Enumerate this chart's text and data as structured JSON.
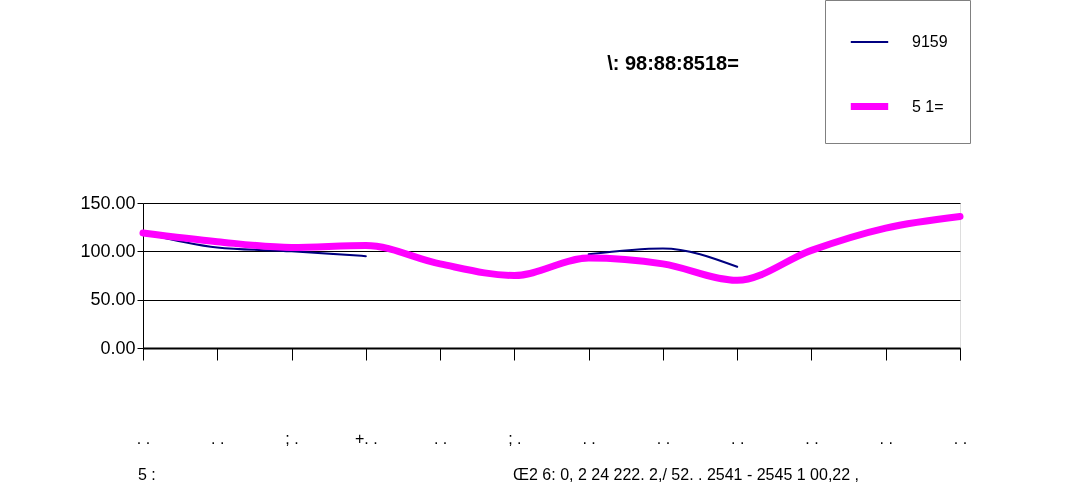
{
  "chart_data": {
    "type": "line",
    "title": "\\: 98:88:8518=",
    "categories": [
      ". .",
      ". .",
      "; .",
      "+. .",
      ". .",
      "; .",
      ". .",
      ". .",
      ". .",
      ". .",
      ". .",
      ". ."
    ],
    "series": [
      {
        "name": "9159",
        "color": "#000080",
        "values": [
          119,
          104,
          100,
          95,
          null,
          null,
          97,
          103,
          84,
          null,
          null,
          null
        ]
      },
      {
        "name": "5 1=",
        "color": "#ff00ff",
        "values": [
          119,
          110,
          104,
          106,
          87,
          75,
          93,
          87,
          70,
          101,
          124,
          136
        ]
      }
    ],
    "ylim": [
      0,
      150
    ],
    "yticks": [
      {
        "value": 0,
        "label": "0.00"
      },
      {
        "value": 50,
        "label": "50.00"
      },
      {
        "value": 100,
        "label": "100.00"
      },
      {
        "value": 150,
        "label": "150.00"
      }
    ],
    "grid": "y",
    "legend": "top right",
    "annotations": [
      "5 :",
      "Œ2 6: 0, 2 24 222. 2,/ 52. . 2541 - 2545 1 00,22 ,"
    ]
  }
}
